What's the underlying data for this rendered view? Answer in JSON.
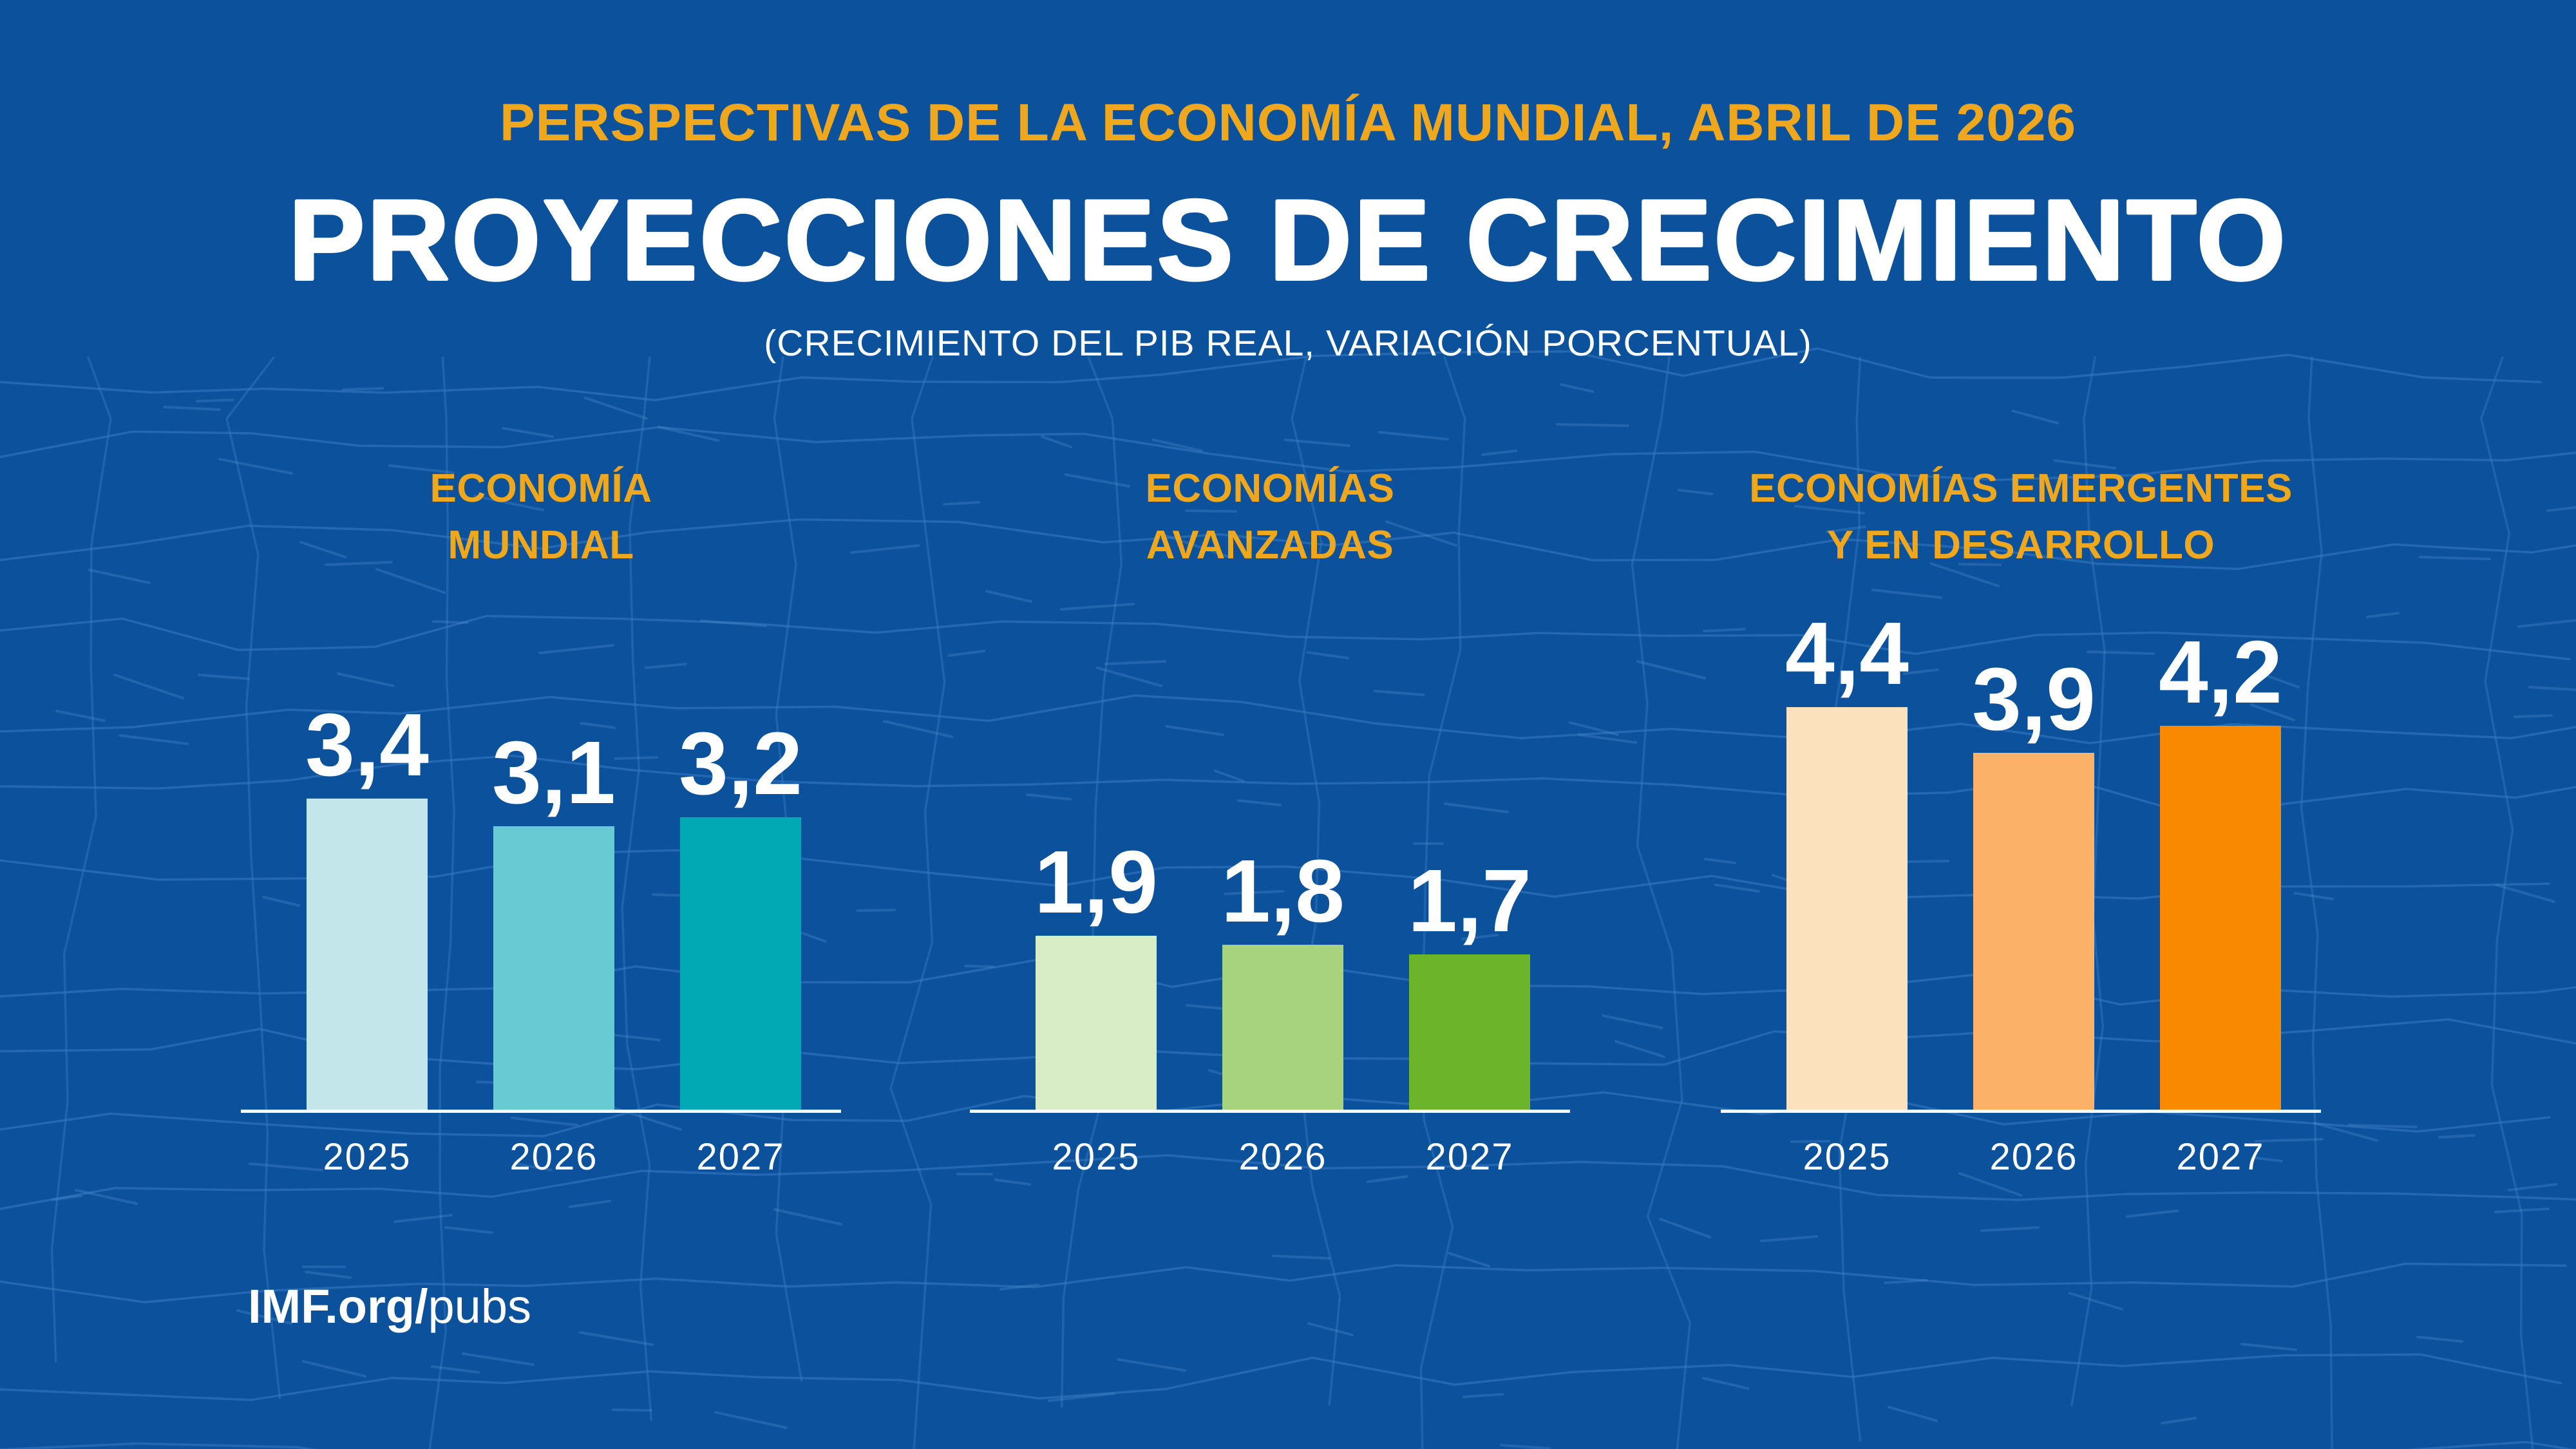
{
  "header": {
    "kicker": "PERSPECTIVAS DE LA ECONOMÍA MUNDIAL, ABRIL DE 2026",
    "title": "PROYECCIONES DE CRECIMIENTO",
    "subtitle": "(CRECIMIENTO DEL PIB REAL, VARIACIÓN PORCENTUAL)"
  },
  "footer": {
    "brand_bold": "IMF.org/",
    "brand_light": "pubs"
  },
  "colors": {
    "background": "#0C519C",
    "pattern_line": "#3A7FC4",
    "pattern_tick": "#4C8CCB",
    "gold": "#EFA81D",
    "text_white": "#FFFFFF",
    "axis": "#FFFFFF"
  },
  "chart_data": {
    "type": "bar",
    "title": "PROYECCIONES DE CRECIMIENTO",
    "subtitle": "(CRECIMIENTO DEL PIB REAL, VARIACIÓN PORCENTUAL)",
    "value_format": "decimal_comma_percent",
    "categories": [
      "2025",
      "2026",
      "2027"
    ],
    "ylim": [
      0,
      5
    ],
    "grid": false,
    "legend": "none",
    "groups": [
      {
        "name": "ECONOMÍA MUNDIAL",
        "title_lines": [
          "ECONOMÍA",
          "MUNDIAL"
        ],
        "values": [
          3.4,
          3.1,
          3.2
        ],
        "value_labels": [
          "3,4",
          "3,1",
          "3,2"
        ],
        "bar_colors": [
          "#C3E6EB",
          "#68CAD2",
          "#00A9B4"
        ]
      },
      {
        "name": "ECONOMÍAS AVANZADAS",
        "title_lines": [
          "ECONOMÍAS",
          "AVANZADAS"
        ],
        "values": [
          1.9,
          1.8,
          1.7
        ],
        "value_labels": [
          "1,9",
          "1,8",
          "1,7"
        ],
        "bar_colors": [
          "#D8ECC6",
          "#A7D37E",
          "#6CB42A"
        ]
      },
      {
        "name": "ECONOMÍAS EMERGENTES Y EN DESARROLLO",
        "title_lines": [
          "ECONOMÍAS EMERGENTES",
          "Y EN DESARROLLO"
        ],
        "values": [
          4.4,
          3.9,
          4.2
        ],
        "value_labels": [
          "4,4",
          "3,9",
          "4,2"
        ],
        "bar_colors": [
          "#FCE1BD",
          "#FBB168",
          "#F98A00"
        ]
      }
    ]
  }
}
